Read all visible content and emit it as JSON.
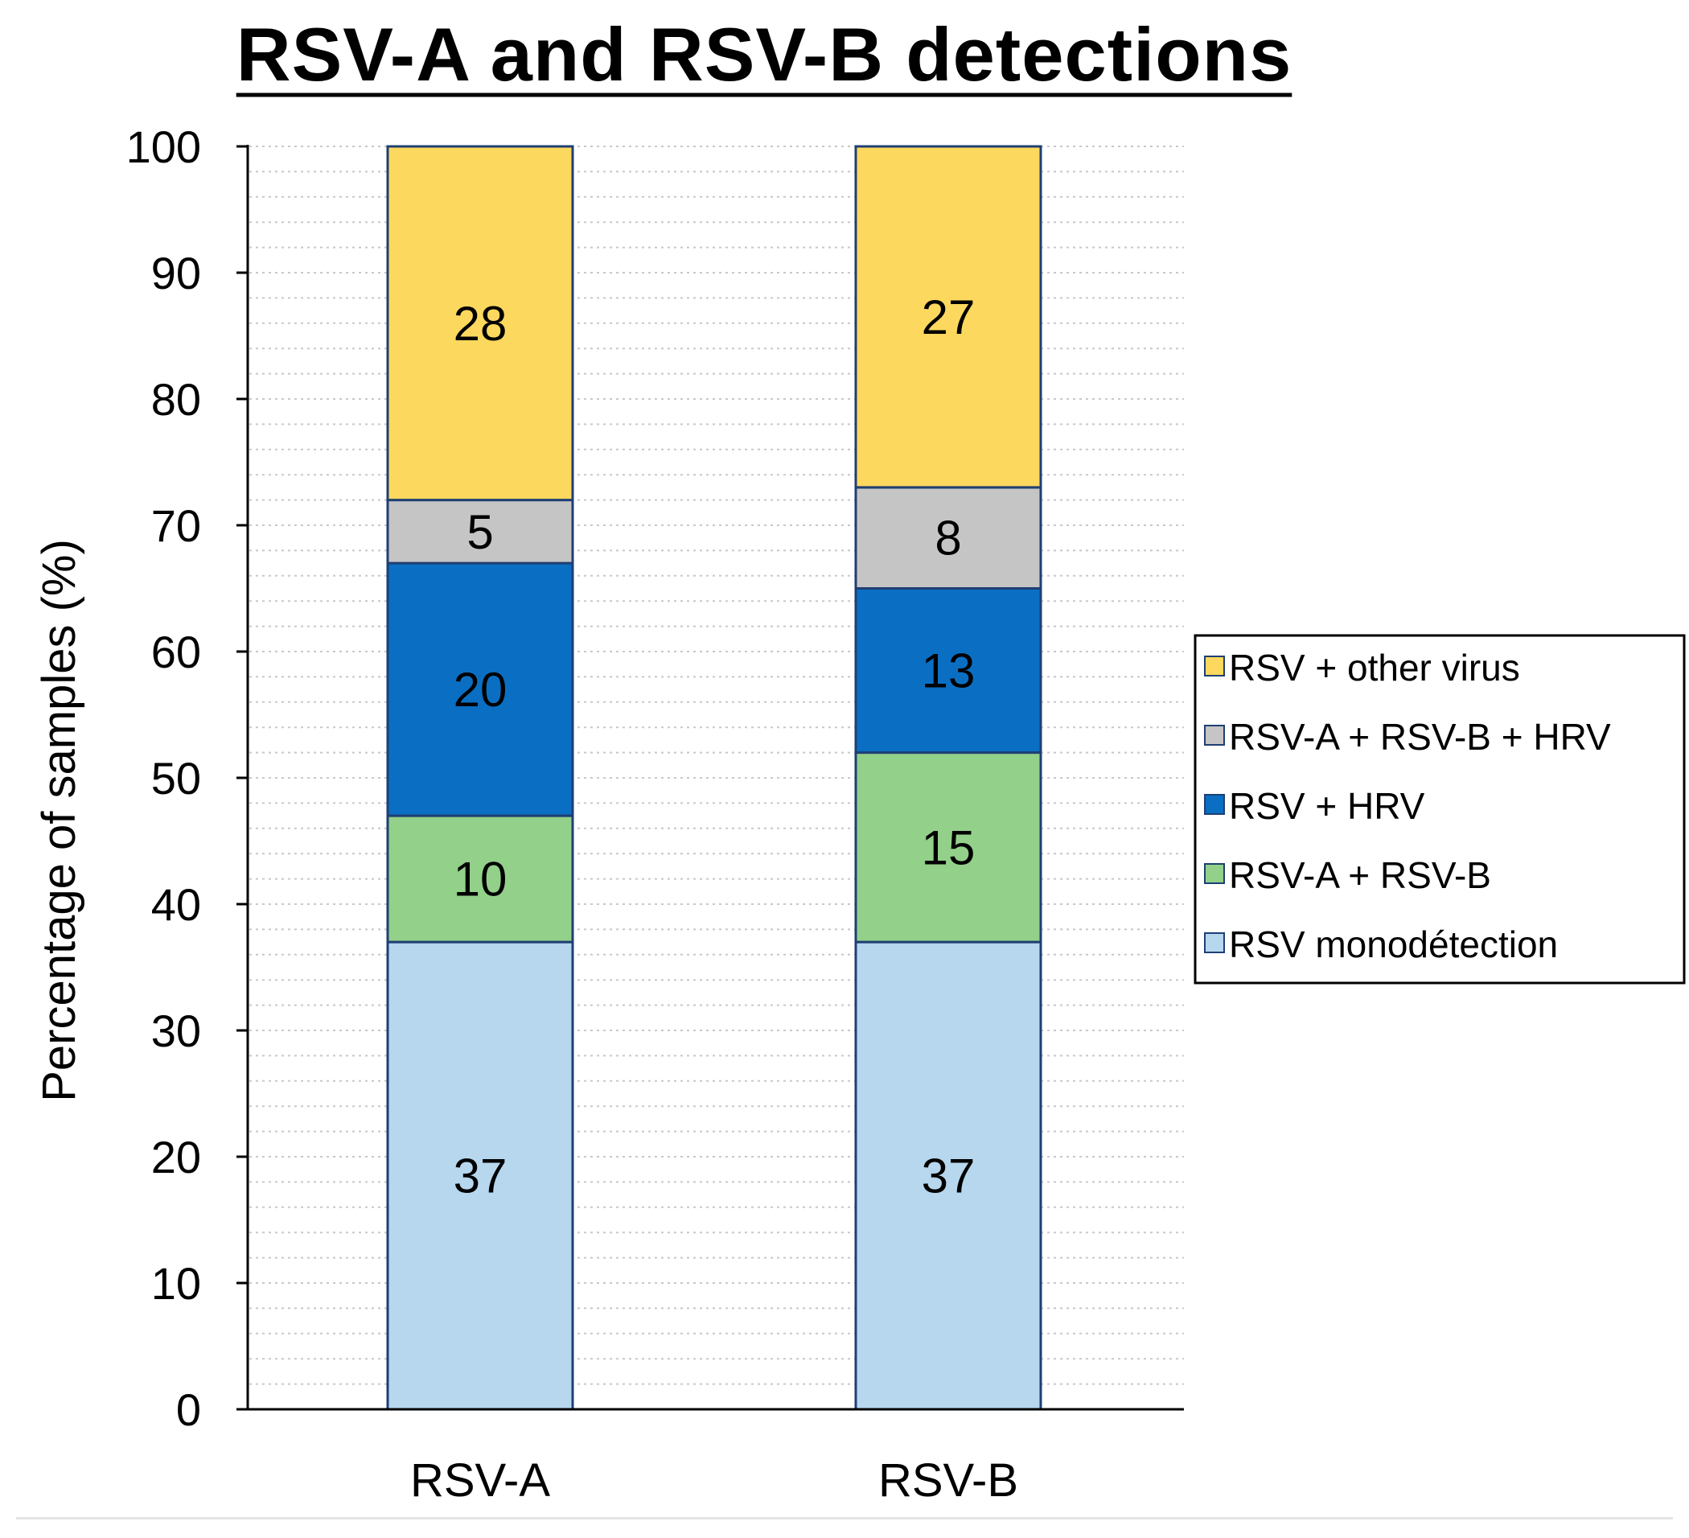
{
  "chart_data": {
    "type": "bar",
    "stacked": true,
    "title": "RSV-A and RSV-B detections",
    "xlabel": "",
    "ylabel": "Percentage of samples (%)",
    "ylim": [
      0,
      100
    ],
    "yticks": [
      0,
      10,
      20,
      30,
      40,
      50,
      60,
      70,
      80,
      90,
      100
    ],
    "grid": "dotted horizontal",
    "legend_position": "right",
    "categories": [
      "RSV-A",
      "RSV-B"
    ],
    "series": [
      {
        "name": "RSV monodétection",
        "color": "#b6d7ee",
        "values": [
          37,
          37
        ]
      },
      {
        "name": "RSV-A + RSV-B",
        "color": "#93d08a",
        "values": [
          10,
          15
        ]
      },
      {
        "name": "RSV + HRV",
        "color": "#0a6fc3",
        "values": [
          20,
          13
        ]
      },
      {
        "name": "RSV-A + RSV-B + HRV",
        "color": "#c5c5c5",
        "values": [
          5,
          8
        ]
      },
      {
        "name": "RSV + other virus",
        "color": "#fdd85e",
        "values": [
          28,
          27
        ]
      }
    ],
    "legend_order": [
      "RSV + other virus",
      "RSV-A + RSV-B + HRV",
      "RSV + HRV",
      "RSV-A + RSV-B",
      "RSV monodétection"
    ]
  },
  "colors": {
    "bar_edge": "#1f3f73",
    "axis": "#000000",
    "grid": "#c8c8c8"
  }
}
